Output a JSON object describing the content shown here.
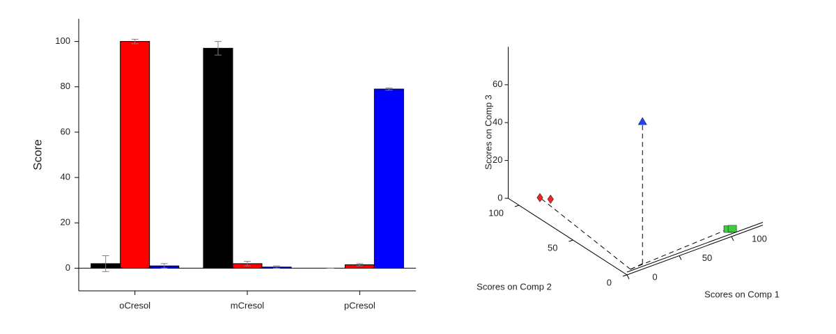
{
  "chart_data": [
    {
      "type": "bar",
      "y_label": "Score",
      "categories": [
        "oCresol",
        "mCresol",
        "pCresol"
      ],
      "series": [
        {
          "color": "#000000",
          "values": [
            2,
            97,
            0
          ],
          "errors": [
            3.5,
            3,
            0
          ]
        },
        {
          "color": "#ff0000",
          "values": [
            100,
            2,
            1.5
          ],
          "errors": [
            1,
            1,
            0.5
          ]
        },
        {
          "color": "#0000ff",
          "values": [
            1,
            0.5,
            79
          ],
          "errors": [
            1,
            0.5,
            0.5
          ]
        }
      ],
      "ylim": [
        -10,
        110
      ],
      "yticks": [
        0,
        20,
        40,
        60,
        80,
        100
      ],
      "error_color": "#808080"
    },
    {
      "type": "scatter3d",
      "x_label": "Scores on Comp 1",
      "y_label": "Scores on Comp 2",
      "z_label": "Scores on Comp 3",
      "series": [
        {
          "color": "#ff2020",
          "marker": "diamond",
          "x": [
            20,
            25
          ],
          "y": [
            100,
            95
          ],
          "z": [
            0,
            0
          ]
        },
        {
          "color": "#2040ff",
          "marker": "triangle",
          "x": [
            20
          ],
          "y": [
            5
          ],
          "z": [
            75
          ]
        },
        {
          "color": "#40cc40",
          "marker": "square",
          "x": [
            105,
            108
          ],
          "y": [
            8,
            7
          ],
          "z": [
            0,
            0
          ]
        }
      ],
      "xlim": [
        0,
        130
      ],
      "ylim": [
        0,
        110
      ],
      "zlim": [
        0,
        80
      ],
      "xticks": [
        0,
        50,
        100
      ],
      "yticks": [
        0,
        50,
        100
      ],
      "zticks": [
        0,
        20,
        40,
        60
      ]
    }
  ]
}
